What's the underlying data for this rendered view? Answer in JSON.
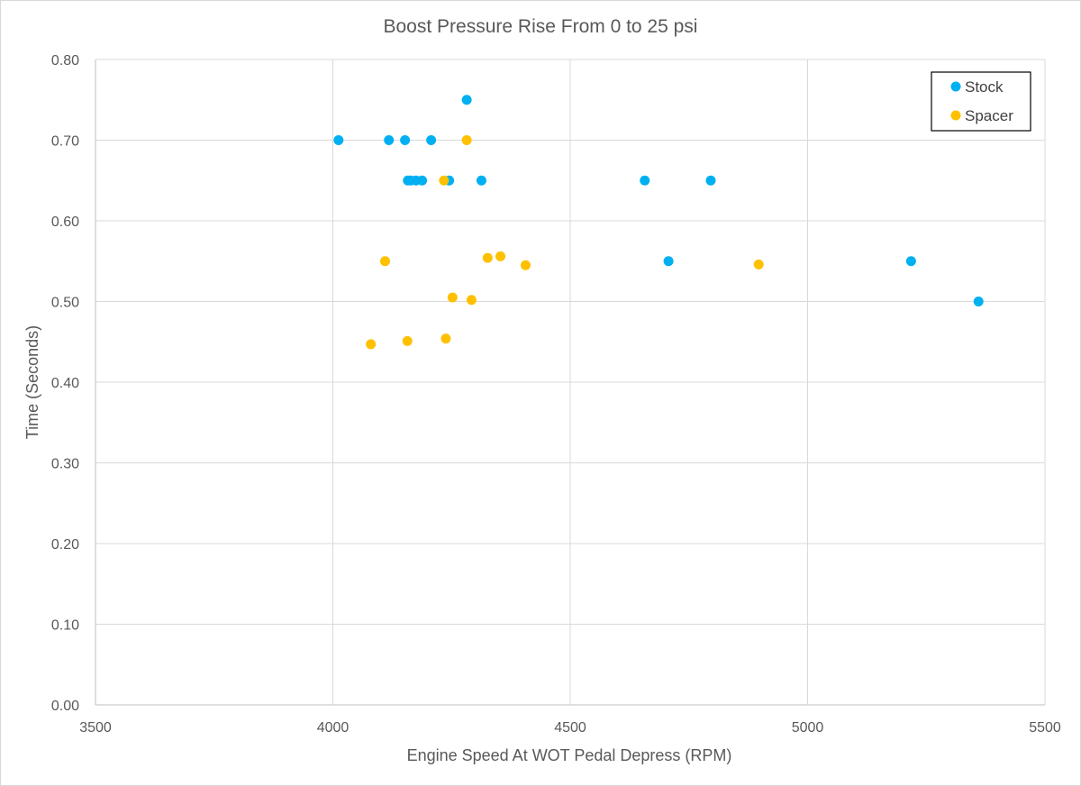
{
  "chart_data": {
    "type": "scatter",
    "title": "Boost Pressure Rise From 0 to 25 psi",
    "xlabel": "Engine Speed At WOT Pedal Depress (RPM)",
    "ylabel": "Time (Seconds)",
    "xlim": [
      3500,
      5500
    ],
    "ylim": [
      0.0,
      0.8
    ],
    "xticks": [
      3500,
      4000,
      4500,
      5000,
      5500
    ],
    "yticks": [
      "0.00",
      "0.10",
      "0.20",
      "0.30",
      "0.40",
      "0.50",
      "0.60",
      "0.70",
      "0.80"
    ],
    "grid": true,
    "legend_position": "top-right",
    "series": [
      {
        "name": "Stock",
        "color": "#00B0F0",
        "points": [
          [
            4012,
            0.7
          ],
          [
            4118,
            0.7
          ],
          [
            4152,
            0.7
          ],
          [
            4207,
            0.7
          ],
          [
            4282,
            0.75
          ],
          [
            4158,
            0.65
          ],
          [
            4164,
            0.65
          ],
          [
            4175,
            0.65
          ],
          [
            4188,
            0.65
          ],
          [
            4245,
            0.65
          ],
          [
            4313,
            0.65
          ],
          [
            4657,
            0.65
          ],
          [
            4796,
            0.65
          ],
          [
            4707,
            0.55
          ],
          [
            5218,
            0.55
          ],
          [
            5360,
            0.5
          ]
        ]
      },
      {
        "name": "Spacer",
        "color": "#FFC000",
        "points": [
          [
            4282,
            0.7
          ],
          [
            4234,
            0.65
          ],
          [
            4110,
            0.55
          ],
          [
            4326,
            0.554
          ],
          [
            4353,
            0.556
          ],
          [
            4406,
            0.545
          ],
          [
            4897,
            0.546
          ],
          [
            4252,
            0.505
          ],
          [
            4292,
            0.502
          ],
          [
            4080,
            0.447
          ],
          [
            4157,
            0.451
          ],
          [
            4238,
            0.454
          ]
        ]
      }
    ]
  }
}
